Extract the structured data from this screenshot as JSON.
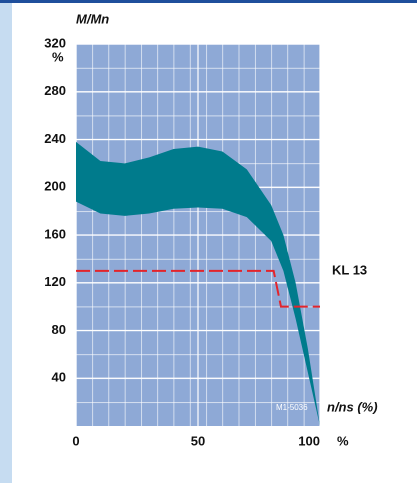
{
  "chart_data": {
    "type": "band",
    "y_label": "M/Mn",
    "y_unit": "%",
    "x_label": "n/ns (%)",
    "x_unit": "%",
    "code": "M1-5036",
    "annotation": "KL 13",
    "xlim": [
      0,
      100
    ],
    "xticks": [
      0,
      50,
      100
    ],
    "ylim": [
      0,
      320
    ],
    "yticks": [
      40,
      80,
      120,
      160,
      200,
      240,
      280,
      320
    ],
    "grid": true,
    "x": [
      0,
      10,
      20,
      30,
      40,
      50,
      60,
      70,
      80,
      85,
      90,
      95,
      100
    ],
    "series": [
      {
        "color": "#007b8c",
        "values": [
          238,
          222,
          220,
          225,
          232,
          234,
          230,
          215,
          185,
          160,
          120,
          65,
          0
        ]
      },
      {
        "color": "#007b8c",
        "values": [
          188,
          178,
          176,
          178,
          182,
          183,
          182,
          175,
          155,
          130,
          90,
          45,
          0
        ]
      }
    ],
    "limit_line": {
      "color": "#e3242b",
      "x": [
        0,
        81,
        84,
        100
      ],
      "values": [
        130,
        130,
        100,
        100
      ]
    }
  }
}
